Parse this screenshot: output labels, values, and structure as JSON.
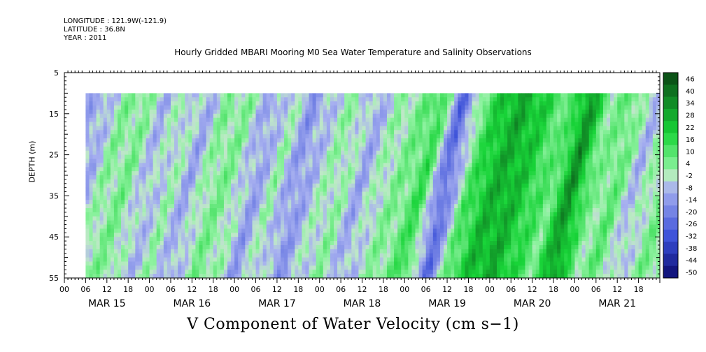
{
  "header": {
    "longitude": "LONGITUDE : 121.9W(-121.9)",
    "latitude": "LATITUDE : 36.8N",
    "year": "YEAR : 2011"
  },
  "chart_data": {
    "type": "heatmap",
    "title": "Hourly Gridded MBARI Mooring M0 Sea Water Temperature and Salinity Observations",
    "xlabel": "V Component of Water Velocity (cm s−1)",
    "ylabel": "DEPTH (m)",
    "ylim": [
      5,
      55
    ],
    "y_inverted": true,
    "y_ticks": [
      5,
      15,
      25,
      35,
      45,
      55
    ],
    "data_depth_range": [
      10,
      55
    ],
    "x_range_hours": [
      0,
      168
    ],
    "data_start_hour": 6,
    "x_hour_tick_labels": [
      "00",
      "06",
      "12",
      "18",
      "00",
      "06",
      "12",
      "18",
      "00",
      "06",
      "12",
      "18",
      "00",
      "06",
      "12",
      "18",
      "00",
      "06",
      "12",
      "18",
      "00",
      "06",
      "12",
      "18",
      "00",
      "06",
      "12",
      "18"
    ],
    "x_day_labels": [
      "MAR 15",
      "MAR 16",
      "MAR 17",
      "MAR 18",
      "MAR 19",
      "MAR 20",
      "MAR 21"
    ],
    "colorbar_labels": [
      "46",
      "40",
      "34",
      "28",
      "22",
      "16",
      "10",
      "4",
      "-2",
      "-8",
      "-14",
      "-20",
      "-26",
      "-32",
      "-38",
      "-44",
      "-50"
    ],
    "colorbar_range": [
      -50,
      50
    ],
    "velocity_profile_hourly_approx": {
      "hours": [
        6,
        12,
        18,
        24,
        30,
        36,
        42,
        48,
        54,
        60,
        66,
        72,
        78,
        84,
        90,
        96,
        102,
        108,
        114,
        120,
        126,
        132,
        138,
        144,
        150,
        156,
        162,
        168
      ],
      "values": [
        -8,
        4,
        6,
        -6,
        2,
        -8,
        6,
        4,
        -10,
        2,
        -12,
        -2,
        4,
        -8,
        2,
        6,
        16,
        -24,
        10,
        26,
        30,
        20,
        8,
        36,
        4,
        10,
        -6,
        6
      ]
    },
    "colors": {
      "negative_low": "#0b0b6e",
      "negative_mid": "#3a4fd8",
      "negative_light": "#a7b0f0",
      "near_zero": "#bfe8c8",
      "positive_light": "#8ef2a0",
      "positive_mid": "#18d438",
      "positive_high": "#0a4e16"
    }
  }
}
